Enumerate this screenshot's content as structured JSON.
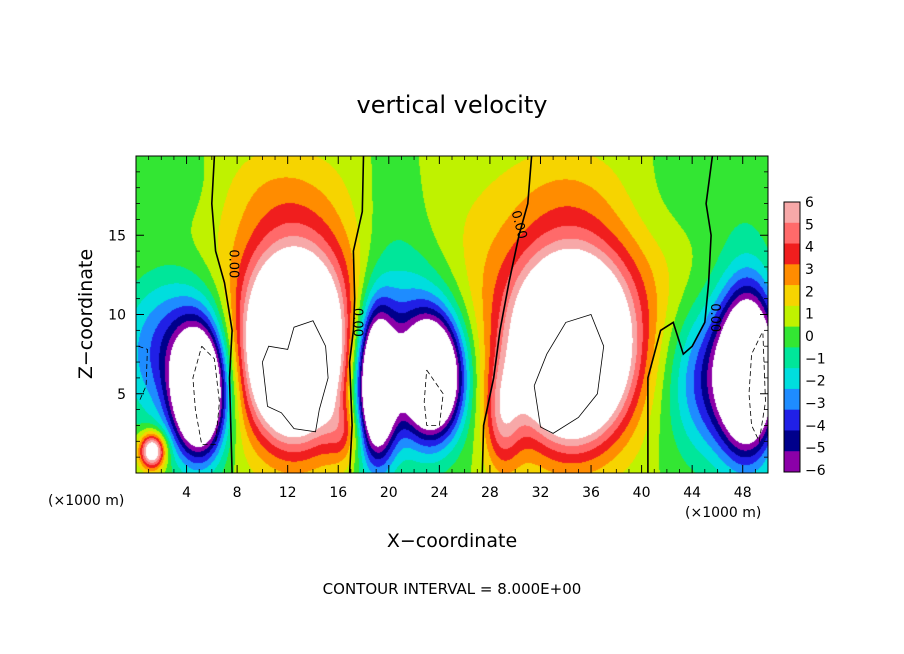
{
  "chart_data": {
    "type": "heatmap",
    "title": "vertical velocity",
    "xlabel": "X−coordinate",
    "ylabel": "Z−coordinate",
    "x_unit_note": "(×1000 m)",
    "y_unit_note": "(×1000 m)",
    "footer": "CONTOUR INTERVAL = 8.000E+00",
    "xlim": [
      0,
      50
    ],
    "ylim": [
      0,
      20
    ],
    "x_ticks": [
      4,
      8,
      12,
      16,
      20,
      24,
      28,
      32,
      36,
      40,
      44,
      48
    ],
    "x_tick_labels": [
      "4",
      "8",
      "12",
      "16",
      "20",
      "24",
      "28",
      "32",
      "36",
      "40",
      "44",
      "48"
    ],
    "y_ticks": [
      5,
      10,
      15
    ],
    "y_tick_labels": [
      "5",
      "10",
      "15"
    ],
    "contour_label": "0.00",
    "colorbar": {
      "levels": [
        6,
        5,
        4,
        3,
        2,
        1,
        0,
        -1,
        -2,
        -3,
        -4,
        -5,
        -6
      ],
      "labels": [
        "6",
        "5",
        "4",
        "3",
        "2",
        "1",
        "0",
        "−1",
        "−2",
        "−3",
        "−4",
        "−5",
        "−6"
      ],
      "colors": [
        "#f7a8a8",
        "#ff6a6a",
        "#f01e1e",
        "#ff8c00",
        "#f6d400",
        "#bff200",
        "#33e633",
        "#00e69a",
        "#00dede",
        "#1e8cff",
        "#2020e6",
        "#00008b",
        "#8b00a8"
      ]
    },
    "blobs": [
      {
        "cx": 24,
        "cz": 13.0,
        "rx": 30,
        "rz": 6.0,
        "v": 1.2
      },
      {
        "cx": 11,
        "cz": 18.0,
        "rx": 5,
        "rz": 3.0,
        "v": 0.9
      },
      {
        "cx": 34,
        "cz": 18.0,
        "rx": 5,
        "rz": 3.0,
        "v": 0.9
      },
      {
        "cx": 3,
        "cz": 18.0,
        "rx": 4,
        "rz": 3.0,
        "v": -1.0
      },
      {
        "cx": 20,
        "cz": 16.0,
        "rx": 3,
        "rz": 5.0,
        "v": -1.0
      },
      {
        "cx": 42,
        "cz": 17.0,
        "rx": 4,
        "rz": 4.0,
        "v": -0.8
      },
      {
        "cx": 48,
        "cz": 16.0,
        "rx": 4,
        "rz": 5.0,
        "v": -1.0
      },
      {
        "cx": 12.5,
        "cz": 7.5,
        "rx": 3.5,
        "rz": 5.0,
        "v": 14
      },
      {
        "cx": 12.5,
        "cz": 9.5,
        "rx": 5.0,
        "rz": 6.5,
        "v": 4.5
      },
      {
        "cx": 34.5,
        "cz": 7.5,
        "rx": 4.0,
        "rz": 5.0,
        "v": 14
      },
      {
        "cx": 34.5,
        "cz": 9.0,
        "rx": 6.0,
        "rz": 6.5,
        "v": 4.5
      },
      {
        "cx": 1.3,
        "cz": 1.4,
        "rx": 1.0,
        "rz": 1.1,
        "v": 9
      },
      {
        "cx": 5.0,
        "cz": 5.0,
        "rx": 2.0,
        "rz": 3.8,
        "v": -14
      },
      {
        "cx": 3.0,
        "cz": 8.0,
        "rx": 4.5,
        "rz": 5.0,
        "v": -5
      },
      {
        "cx": 19.0,
        "cz": 5.5,
        "rx": 1.5,
        "rz": 4.5,
        "v": -13
      },
      {
        "cx": 21.5,
        "cz": 8.0,
        "rx": 4.0,
        "rz": 6.0,
        "v": -5
      },
      {
        "cx": 23.5,
        "cz": 6.0,
        "rx": 2.2,
        "rz": 3.5,
        "v": -13
      },
      {
        "cx": 48.5,
        "cz": 6.5,
        "rx": 2.2,
        "rz": 5.0,
        "v": -14
      },
      {
        "cx": 45.5,
        "cz": 6.0,
        "rx": 3.5,
        "rz": 5.0,
        "v": -5
      },
      {
        "cx": 29.0,
        "cz": 3.5,
        "rx": 1.5,
        "rz": 3.5,
        "v": 4.0
      },
      {
        "cx": 16.5,
        "cz": 2.5,
        "rx": 1.5,
        "rz": 2.0,
        "v": 2.5
      }
    ],
    "zero_contours": [
      [
        [
          6.2,
          20
        ],
        [
          6.0,
          17
        ],
        [
          6.3,
          14
        ],
        [
          7.0,
          12
        ],
        [
          7.6,
          9
        ],
        [
          7.4,
          6
        ],
        [
          7.5,
          3
        ],
        [
          7.6,
          0
        ]
      ],
      [
        [
          18.0,
          20
        ],
        [
          17.9,
          16.5
        ],
        [
          17.2,
          14
        ],
        [
          17.3,
          11
        ],
        [
          17.2,
          9
        ],
        [
          16.9,
          7
        ],
        [
          17.1,
          3
        ],
        [
          16.9,
          0
        ]
      ],
      [
        [
          31.3,
          20
        ],
        [
          31.0,
          17
        ],
        [
          30.3,
          15
        ],
        [
          29.5,
          12
        ],
        [
          28.8,
          9
        ],
        [
          28.3,
          6
        ],
        [
          27.5,
          3
        ],
        [
          27.4,
          0
        ]
      ],
      [
        [
          45.6,
          20
        ],
        [
          45.1,
          17
        ],
        [
          45.5,
          15
        ],
        [
          45.3,
          12
        ],
        [
          45.0,
          9.5
        ],
        [
          44.0,
          8
        ],
        [
          43.3,
          7.5
        ],
        [
          42.5,
          9.5
        ],
        [
          41.5,
          9
        ],
        [
          40.5,
          6
        ],
        [
          40.5,
          3
        ],
        [
          40.5,
          0
        ]
      ]
    ],
    "contour_label_positions": [
      [
        7.4,
        13.2
      ],
      [
        17.2,
        9.5
      ],
      [
        30.0,
        15.6
      ],
      [
        45.5,
        9.8
      ]
    ],
    "pos_contours": [
      [
        [
          10.0,
          7.0
        ],
        [
          10.5,
          8.0
        ],
        [
          12.0,
          7.8
        ],
        [
          12.5,
          9.2
        ],
        [
          14.0,
          9.6
        ],
        [
          15.0,
          8.0
        ],
        [
          15.2,
          6.0
        ],
        [
          14.5,
          4.0
        ],
        [
          14.2,
          2.6
        ],
        [
          12.5,
          2.8
        ],
        [
          11.5,
          3.8
        ],
        [
          10.4,
          4.2
        ],
        [
          10.0,
          7.0
        ]
      ],
      [
        [
          31.5,
          5.5
        ],
        [
          32.5,
          7.5
        ],
        [
          34.0,
          9.5
        ],
        [
          36.0,
          10.0
        ],
        [
          37.0,
          8.0
        ],
        [
          36.5,
          5.0
        ],
        [
          35.0,
          3.5
        ],
        [
          33.0,
          2.5
        ],
        [
          32.0,
          2.9
        ],
        [
          31.5,
          5.5
        ]
      ]
    ],
    "neg_contours": [
      [
        [
          5.2,
          8.0
        ],
        [
          6.2,
          7.2
        ],
        [
          6.6,
          4.5
        ],
        [
          6.3,
          1.8
        ],
        [
          5.2,
          1.8
        ],
        [
          4.7,
          4.0
        ],
        [
          4.5,
          6.0
        ],
        [
          5.2,
          8.0
        ]
      ],
      [
        [
          0.2,
          8.0
        ],
        [
          0.9,
          7.8
        ],
        [
          0.8,
          5.5
        ],
        [
          0.3,
          4.6
        ]
      ],
      [
        [
          49.5,
          8.8
        ],
        [
          48.7,
          7.5
        ],
        [
          48.5,
          5.0
        ],
        [
          48.7,
          3.0
        ],
        [
          49.3,
          2.0
        ],
        [
          49.8,
          4.5
        ],
        [
          49.6,
          8.8
        ]
      ],
      [
        [
          23.0,
          6.5
        ],
        [
          24.3,
          5.0
        ],
        [
          24.0,
          3.0
        ],
        [
          23.0,
          3.0
        ],
        [
          22.8,
          4.5
        ],
        [
          23.0,
          6.5
        ]
      ]
    ]
  }
}
